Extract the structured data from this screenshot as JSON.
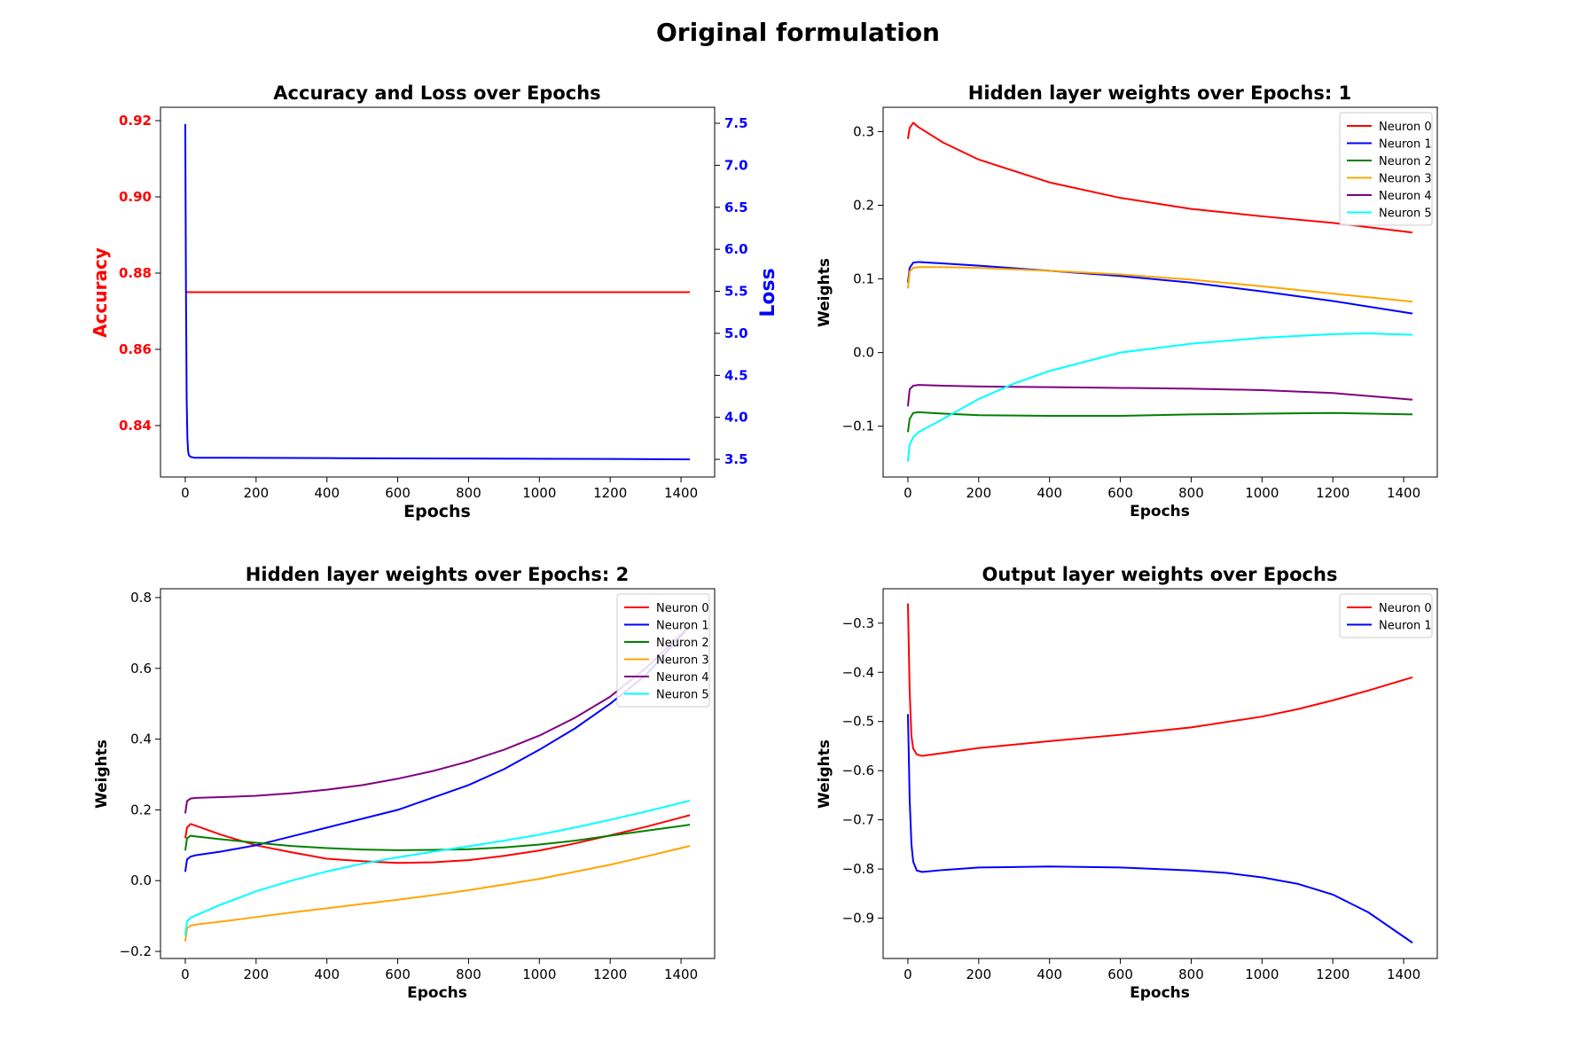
{
  "figure": {
    "suptitle": "Original formulation"
  },
  "chart_data": [
    {
      "id": "acc-loss",
      "type": "line",
      "title": "Accuracy and Loss over Epochs",
      "xlabel": "Epochs",
      "ylabel": "Accuracy",
      "ylabel_right": "Loss",
      "xlim": [
        -70,
        1495
      ],
      "ylim": [
        0.8265,
        0.9235
      ],
      "ylim_right": [
        3.29,
        7.69
      ],
      "xticks": [
        0,
        200,
        400,
        600,
        800,
        1000,
        1200,
        1400
      ],
      "yticks": [
        0.84,
        0.86,
        0.88,
        0.9,
        0.92
      ],
      "yticks_right": [
        3.5,
        4.0,
        4.5,
        5.0,
        5.5,
        6.0,
        6.5,
        7.0,
        7.5
      ],
      "ytick_labels": [
        "0.84",
        "0.86",
        "0.88",
        "0.90",
        "0.92"
      ],
      "ytick_labels_right": [
        "3.5",
        "4.0",
        "4.5",
        "5.0",
        "5.5",
        "6.0",
        "6.5",
        "7.0",
        "7.5"
      ],
      "left_axis_color": "#ff0000",
      "right_axis_color": "#0000ff",
      "grid": false,
      "legend": "none",
      "series": [
        {
          "axis": "left",
          "color": "#ff0000",
          "x": [
            0,
            1425
          ],
          "y": [
            0.875,
            0.875
          ]
        },
        {
          "axis": "right",
          "color": "#0000ff",
          "x": [
            0,
            2,
            4,
            6,
            8,
            10,
            15,
            25,
            100,
            400,
            800,
            1200,
            1425
          ],
          "y": [
            7.49,
            5.5,
            4.2,
            3.75,
            3.6,
            3.55,
            3.53,
            3.52,
            3.52,
            3.515,
            3.51,
            3.505,
            3.5
          ]
        }
      ]
    },
    {
      "id": "hidden-1",
      "type": "line",
      "title": "Hidden layer weights over Epochs: 1",
      "xlabel": "Epochs",
      "ylabel": "Weights",
      "xlim": [
        -70,
        1495
      ],
      "ylim": [
        -0.169,
        0.333
      ],
      "xticks": [
        0,
        200,
        400,
        600,
        800,
        1000,
        1200,
        1400
      ],
      "yticks": [
        -0.1,
        0.0,
        0.1,
        0.2,
        0.3
      ],
      "ytick_labels": [
        "−0.1",
        "0.0",
        "0.1",
        "0.2",
        "0.3"
      ],
      "grid": false,
      "legend": "top-right",
      "series": [
        {
          "name": "Neuron 0",
          "color": "#ff0000",
          "x": [
            0,
            5,
            15,
            30,
            100,
            200,
            400,
            600,
            800,
            1000,
            1200,
            1425
          ],
          "y": [
            0.29,
            0.305,
            0.312,
            0.306,
            0.285,
            0.262,
            0.231,
            0.21,
            0.195,
            0.185,
            0.176,
            0.163
          ]
        },
        {
          "name": "Neuron 1",
          "color": "#0000ff",
          "x": [
            0,
            5,
            15,
            30,
            100,
            200,
            400,
            600,
            800,
            1000,
            1200,
            1425
          ],
          "y": [
            0.095,
            0.115,
            0.122,
            0.123,
            0.121,
            0.118,
            0.111,
            0.104,
            0.095,
            0.083,
            0.07,
            0.053
          ]
        },
        {
          "name": "Neuron 2",
          "color": "#008000",
          "x": [
            0,
            5,
            15,
            30,
            100,
            200,
            400,
            600,
            800,
            1000,
            1200,
            1425
          ],
          "y": [
            -0.108,
            -0.09,
            -0.082,
            -0.081,
            -0.083,
            -0.085,
            -0.086,
            -0.086,
            -0.084,
            -0.083,
            -0.082,
            -0.084
          ]
        },
        {
          "name": "Neuron 3",
          "color": "#ffa500",
          "x": [
            0,
            5,
            15,
            30,
            100,
            200,
            400,
            600,
            800,
            1000,
            1200,
            1425
          ],
          "y": [
            0.087,
            0.11,
            0.115,
            0.116,
            0.116,
            0.115,
            0.111,
            0.106,
            0.099,
            0.09,
            0.08,
            0.069
          ]
        },
        {
          "name": "Neuron 4",
          "color": "#800080",
          "x": [
            0,
            5,
            15,
            30,
            100,
            200,
            400,
            600,
            800,
            1000,
            1200,
            1425
          ],
          "y": [
            -0.073,
            -0.05,
            -0.045,
            -0.044,
            -0.045,
            -0.046,
            -0.047,
            -0.048,
            -0.049,
            -0.051,
            -0.055,
            -0.064
          ]
        },
        {
          "name": "Neuron 5",
          "color": "#00ffff",
          "x": [
            0,
            5,
            15,
            30,
            100,
            200,
            300,
            400,
            600,
            800,
            1000,
            1200,
            1300,
            1425
          ],
          "y": [
            -0.148,
            -0.125,
            -0.115,
            -0.108,
            -0.09,
            -0.063,
            -0.042,
            -0.025,
            0.0,
            0.012,
            0.02,
            0.025,
            0.026,
            0.024
          ]
        }
      ]
    },
    {
      "id": "hidden-2",
      "type": "line",
      "title": "Hidden layer weights over Epochs: 2",
      "xlabel": "Epochs",
      "ylabel": "Weights",
      "xlim": [
        -70,
        1495
      ],
      "ylim": [
        -0.22,
        0.825
      ],
      "xticks": [
        0,
        200,
        400,
        600,
        800,
        1000,
        1200,
        1400
      ],
      "yticks": [
        -0.2,
        0.0,
        0.2,
        0.4,
        0.6,
        0.8
      ],
      "ytick_labels": [
        "−0.2",
        "0.0",
        "0.2",
        "0.4",
        "0.6",
        "0.8"
      ],
      "grid": false,
      "legend": "top-right",
      "series": [
        {
          "name": "Neuron 0",
          "color": "#ff0000",
          "x": [
            0,
            5,
            15,
            30,
            100,
            200,
            300,
            400,
            500,
            600,
            700,
            800,
            900,
            1000,
            1100,
            1200,
            1300,
            1425
          ],
          "y": [
            0.12,
            0.15,
            0.16,
            0.155,
            0.13,
            0.1,
            0.08,
            0.062,
            0.055,
            0.05,
            0.052,
            0.058,
            0.07,
            0.085,
            0.105,
            0.128,
            0.152,
            0.185
          ]
        },
        {
          "name": "Neuron 1",
          "color": "#0000ff",
          "x": [
            0,
            5,
            15,
            30,
            100,
            200,
            300,
            400,
            500,
            600,
            700,
            800,
            900,
            1000,
            1100,
            1200,
            1300,
            1425
          ],
          "y": [
            0.025,
            0.06,
            0.068,
            0.072,
            0.082,
            0.1,
            0.125,
            0.15,
            0.175,
            0.2,
            0.235,
            0.27,
            0.315,
            0.37,
            0.43,
            0.5,
            0.58,
            0.72
          ]
        },
        {
          "name": "Neuron 2",
          "color": "#008000",
          "x": [
            0,
            5,
            15,
            30,
            100,
            200,
            300,
            400,
            500,
            600,
            700,
            800,
            900,
            1000,
            1100,
            1200,
            1300,
            1425
          ],
          "y": [
            0.085,
            0.12,
            0.127,
            0.125,
            0.117,
            0.107,
            0.098,
            0.092,
            0.088,
            0.086,
            0.087,
            0.089,
            0.094,
            0.102,
            0.113,
            0.127,
            0.141,
            0.158
          ]
        },
        {
          "name": "Neuron 3",
          "color": "#ffa500",
          "x": [
            0,
            5,
            15,
            30,
            100,
            200,
            300,
            400,
            500,
            600,
            700,
            800,
            900,
            1000,
            1100,
            1200,
            1300,
            1425
          ],
          "y": [
            -0.172,
            -0.135,
            -0.127,
            -0.124,
            -0.116,
            -0.103,
            -0.09,
            -0.078,
            -0.066,
            -0.054,
            -0.041,
            -0.027,
            -0.011,
            0.005,
            0.025,
            0.045,
            0.068,
            0.098
          ]
        },
        {
          "name": "Neuron 4",
          "color": "#800080",
          "x": [
            0,
            5,
            15,
            30,
            100,
            200,
            300,
            400,
            500,
            600,
            700,
            800,
            900,
            1000,
            1100,
            1200,
            1300,
            1425
          ],
          "y": [
            0.19,
            0.225,
            0.232,
            0.234,
            0.236,
            0.24,
            0.247,
            0.257,
            0.27,
            0.288,
            0.31,
            0.337,
            0.37,
            0.41,
            0.46,
            0.52,
            0.6,
            0.72
          ]
        },
        {
          "name": "Neuron 5",
          "color": "#00ffff",
          "x": [
            0,
            5,
            15,
            30,
            100,
            200,
            300,
            400,
            500,
            600,
            700,
            800,
            900,
            1000,
            1100,
            1200,
            1300,
            1425
          ],
          "y": [
            -0.155,
            -0.115,
            -0.105,
            -0.098,
            -0.068,
            -0.03,
            0.0,
            0.026,
            0.048,
            0.066,
            0.082,
            0.097,
            0.113,
            0.13,
            0.15,
            0.172,
            0.195,
            0.226
          ]
        }
      ]
    },
    {
      "id": "output",
      "type": "line",
      "title": "Output layer weights over Epochs",
      "xlabel": "Epochs",
      "ylabel": "Weights",
      "xlim": [
        -70,
        1495
      ],
      "ylim": [
        -0.982,
        -0.23
      ],
      "xticks": [
        0,
        200,
        400,
        600,
        800,
        1000,
        1200,
        1400
      ],
      "yticks": [
        -0.9,
        -0.8,
        -0.7,
        -0.6,
        -0.5,
        -0.4,
        -0.3
      ],
      "ytick_labels": [
        "−0.9",
        "−0.8",
        "−0.7",
        "−0.6",
        "−0.5",
        "−0.4",
        "−0.3"
      ],
      "grid": false,
      "legend": "top-right",
      "series": [
        {
          "name": "Neuron 0",
          "color": "#ff0000",
          "x": [
            0,
            2,
            5,
            10,
            15,
            25,
            40,
            100,
            200,
            400,
            600,
            800,
            1000,
            1100,
            1200,
            1300,
            1425
          ],
          "y": [
            -0.26,
            -0.33,
            -0.44,
            -0.53,
            -0.555,
            -0.567,
            -0.57,
            -0.564,
            -0.554,
            -0.54,
            -0.527,
            -0.512,
            -0.49,
            -0.475,
            -0.457,
            -0.437,
            -0.41
          ]
        },
        {
          "name": "Neuron 1",
          "color": "#0000ff",
          "x": [
            0,
            2,
            5,
            10,
            15,
            25,
            40,
            100,
            200,
            400,
            600,
            800,
            900,
            1000,
            1100,
            1200,
            1300,
            1425
          ],
          "y": [
            -0.485,
            -0.55,
            -0.66,
            -0.75,
            -0.785,
            -0.803,
            -0.806,
            -0.802,
            -0.797,
            -0.795,
            -0.797,
            -0.803,
            -0.808,
            -0.817,
            -0.83,
            -0.852,
            -0.888,
            -0.95
          ]
        }
      ]
    }
  ]
}
